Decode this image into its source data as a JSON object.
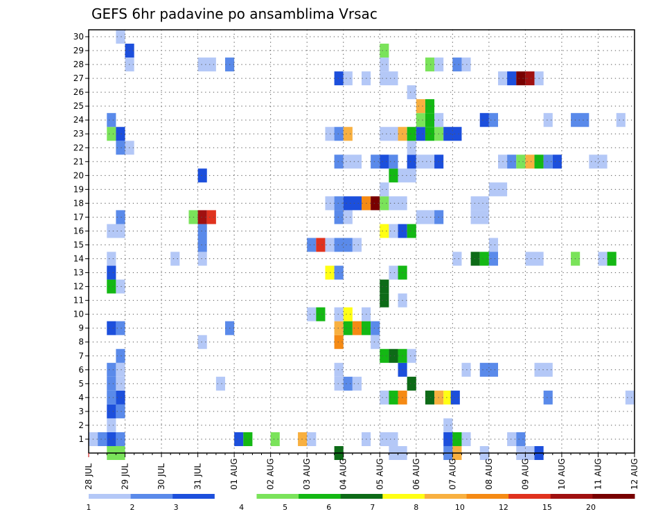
{
  "chart_data": {
    "type": "heatmap",
    "title": "GEFS 6hr padavine po ansamblima Vrsac",
    "x_ticks": [
      "28 JUL",
      "29 JUL",
      "30 JUL",
      "31 JUL",
      "01 AUG",
      "02 AUG",
      "03 AUG",
      "04 AUG",
      "05 AUG",
      "06 AUG",
      "07 AUG",
      "08 AUG",
      "09 AUG",
      "10 AUG",
      "11 AUG",
      "12 AUG"
    ],
    "x_step": "6hr",
    "y_members": [
      1,
      2,
      3,
      4,
      5,
      6,
      7,
      8,
      9,
      10,
      11,
      12,
      13,
      14,
      15,
      16,
      17,
      18,
      19,
      20,
      21,
      22,
      23,
      24,
      25,
      26,
      27,
      28,
      29,
      30
    ],
    "grid": "dotted",
    "colorbar": {
      "labels": [
        "1",
        "2",
        "3",
        "4",
        "5",
        "6",
        "7",
        "8",
        "10",
        "12",
        "15",
        "20"
      ],
      "colors": [
        "#b4c8f7",
        "#5a8aea",
        "#1c4fdc",
        "#ffffff",
        "#7ae35a",
        "#14b814",
        "#0d6b17",
        "#ffff14",
        "#f8b040",
        "#f58a14",
        "#e0321e",
        "#a01010",
        "#780000"
      ]
    },
    "cells": [
      [
        0,
        1,
        0,
        1,
        1
      ],
      [
        0.25,
        1,
        1,
        1,
        1
      ],
      [
        0.5,
        1,
        2,
        1,
        1
      ],
      [
        0.75,
        1,
        1,
        1,
        1
      ],
      [
        1,
        29,
        2,
        1,
        1
      ],
      [
        1,
        28,
        0,
        1,
        1
      ],
      [
        0.75,
        30,
        0,
        1,
        1
      ],
      [
        4,
        1,
        2,
        1,
        1
      ],
      [
        4.25,
        1,
        5,
        1,
        1
      ],
      [
        5,
        1,
        4,
        1,
        1
      ],
      [
        5.75,
        1,
        8,
        1,
        1
      ],
      [
        6,
        1,
        0,
        1,
        1
      ],
      [
        7.5,
        1,
        0,
        1,
        1
      ],
      [
        8,
        1,
        0,
        2,
        1
      ],
      [
        9.75,
        1,
        2,
        1,
        1
      ],
      [
        10,
        1,
        5,
        1,
        1
      ],
      [
        10.25,
        1,
        0,
        1,
        1
      ],
      [
        11.5,
        1,
        0,
        1,
        1
      ],
      [
        11.75,
        1,
        1,
        1,
        1
      ],
      [
        0.5,
        2,
        0,
        1,
        1
      ],
      [
        9.75,
        2,
        0,
        1,
        1
      ],
      [
        0.5,
        3,
        2,
        1,
        1
      ],
      [
        0.75,
        3,
        1,
        1,
        1
      ],
      [
        0.5,
        4,
        1,
        1,
        1
      ],
      [
        0.75,
        4,
        2,
        1,
        1
      ],
      [
        8,
        4,
        0,
        1,
        1
      ],
      [
        8.25,
        4,
        5,
        1,
        1
      ],
      [
        8.5,
        4,
        9,
        1,
        1
      ],
      [
        9.25,
        4,
        6,
        1,
        1
      ],
      [
        9.5,
        4,
        8,
        1,
        1
      ],
      [
        9.75,
        4,
        7,
        1,
        1
      ],
      [
        9.95,
        4,
        2,
        1,
        1
      ],
      [
        12.5,
        4,
        1,
        1,
        1
      ],
      [
        14.75,
        4,
        0,
        1,
        1
      ],
      [
        0.5,
        5,
        1,
        1,
        1
      ],
      [
        0.75,
        5,
        0,
        1,
        1
      ],
      [
        3.5,
        5,
        0,
        1,
        1
      ],
      [
        6.75,
        5,
        0,
        1,
        1
      ],
      [
        7,
        5,
        1,
        1,
        1
      ],
      [
        7.25,
        5,
        0,
        1,
        1
      ],
      [
        8.75,
        5,
        6,
        1,
        1
      ],
      [
        0.5,
        6,
        1,
        1,
        1
      ],
      [
        0.75,
        6,
        0,
        1,
        1
      ],
      [
        6.75,
        6,
        0,
        1,
        1
      ],
      [
        8.5,
        6,
        2,
        1,
        1
      ],
      [
        10.25,
        6,
        0,
        1,
        1
      ],
      [
        10.75,
        6,
        1,
        2,
        1
      ],
      [
        12.25,
        6,
        0,
        2,
        1
      ],
      [
        0.75,
        7,
        1,
        1,
        1
      ],
      [
        8,
        7,
        5,
        1,
        1
      ],
      [
        8.25,
        7,
        6,
        1,
        1
      ],
      [
        8.5,
        7,
        5,
        1,
        1
      ],
      [
        8.75,
        7,
        0,
        1,
        1
      ],
      [
        3,
        8,
        0,
        1,
        1
      ],
      [
        6.75,
        8,
        9,
        1,
        1
      ],
      [
        7.75,
        8,
        0,
        1,
        1
      ],
      [
        0.5,
        9,
        2,
        1,
        1
      ],
      [
        0.75,
        9,
        1,
        1,
        1
      ],
      [
        3.75,
        9,
        1,
        1,
        1
      ],
      [
        6.75,
        9,
        8,
        1,
        1
      ],
      [
        7,
        9,
        5,
        1,
        1
      ],
      [
        7.25,
        9,
        9,
        1,
        1
      ],
      [
        7.5,
        9,
        5,
        1,
        1
      ],
      [
        7.75,
        9,
        1,
        1,
        1
      ],
      [
        6,
        10,
        0,
        1,
        1
      ],
      [
        6.25,
        10,
        5,
        1,
        1
      ],
      [
        6.75,
        10,
        0,
        1,
        1
      ],
      [
        7,
        10,
        7,
        1,
        1
      ],
      [
        7.5,
        10,
        0,
        1,
        1
      ],
      [
        8,
        11,
        6,
        1,
        1
      ],
      [
        8.5,
        11,
        0,
        1,
        1
      ],
      [
        0.5,
        12,
        5,
        1,
        1
      ],
      [
        0.75,
        12,
        0,
        1,
        1
      ],
      [
        8,
        12,
        6,
        1,
        1
      ],
      [
        0.5,
        13,
        2,
        1,
        1
      ],
      [
        6.5,
        13,
        7,
        1,
        1
      ],
      [
        6.75,
        13,
        1,
        1,
        1
      ],
      [
        8.25,
        13,
        0,
        1,
        1
      ],
      [
        8.5,
        13,
        5,
        1,
        1
      ],
      [
        0.5,
        14,
        0,
        1,
        1
      ],
      [
        2.25,
        14,
        0,
        1,
        1
      ],
      [
        3,
        14,
        0,
        1,
        1
      ],
      [
        10,
        14,
        0,
        1,
        1
      ],
      [
        10.5,
        14,
        6,
        1,
        1
      ],
      [
        10.75,
        14,
        5,
        1,
        1
      ],
      [
        11,
        14,
        1,
        1,
        1
      ],
      [
        12,
        14,
        0,
        2,
        1
      ],
      [
        13.25,
        14,
        4,
        1,
        1
      ],
      [
        14,
        14,
        0,
        1,
        1
      ],
      [
        14.25,
        14,
        5,
        1,
        1
      ],
      [
        11,
        15,
        0,
        1,
        1
      ],
      [
        3,
        15,
        1,
        1,
        1
      ],
      [
        6,
        15,
        1,
        1,
        1
      ],
      [
        6.25,
        15,
        10,
        1,
        1
      ],
      [
        6.5,
        15,
        0,
        1,
        1
      ],
      [
        6.75,
        15,
        1,
        2,
        1
      ],
      [
        7.25,
        15,
        0,
        1,
        1
      ],
      [
        0.5,
        16,
        0,
        2,
        1
      ],
      [
        3,
        16,
        1,
        1,
        1
      ],
      [
        8,
        16,
        7,
        1,
        1
      ],
      [
        8.25,
        16,
        0,
        1,
        1
      ],
      [
        8.5,
        16,
        2,
        1,
        1
      ],
      [
        8.75,
        16,
        5,
        1,
        1
      ],
      [
        0.75,
        17,
        1,
        1,
        1
      ],
      [
        2.75,
        17,
        4,
        1,
        1
      ],
      [
        3,
        17,
        11,
        1,
        1
      ],
      [
        3.25,
        17,
        10,
        1,
        1
      ],
      [
        6.75,
        17,
        1,
        1,
        1
      ],
      [
        7,
        17,
        0,
        1,
        1
      ],
      [
        9,
        17,
        0,
        2,
        1
      ],
      [
        9.5,
        17,
        1,
        1,
        1
      ],
      [
        10.5,
        17,
        0,
        2,
        1
      ],
      [
        6.5,
        18,
        0,
        1,
        1
      ],
      [
        6.75,
        18,
        1,
        1,
        1
      ],
      [
        7,
        18,
        2,
        2,
        1
      ],
      [
        7.5,
        18,
        9,
        1,
        1
      ],
      [
        7.75,
        18,
        12,
        1,
        1
      ],
      [
        8,
        18,
        4,
        1,
        1
      ],
      [
        8.25,
        18,
        0,
        2,
        1
      ],
      [
        10.5,
        18,
        0,
        2,
        1
      ],
      [
        8,
        19,
        0,
        1,
        1
      ],
      [
        11,
        19,
        0,
        2,
        1
      ],
      [
        3,
        20,
        2,
        1,
        1
      ],
      [
        8.25,
        20,
        5,
        1,
        1
      ],
      [
        8.5,
        20,
        0,
        2,
        1
      ],
      [
        6.75,
        21,
        1,
        1,
        1
      ],
      [
        7,
        21,
        0,
        2,
        1
      ],
      [
        7.75,
        21,
        1,
        1,
        1
      ],
      [
        8,
        21,
        2,
        1,
        1
      ],
      [
        8.25,
        21,
        1,
        1,
        1
      ],
      [
        8.75,
        21,
        2,
        1,
        1
      ],
      [
        9,
        21,
        0,
        2,
        1
      ],
      [
        9.5,
        21,
        2,
        1,
        1
      ],
      [
        11.25,
        21,
        0,
        1,
        1
      ],
      [
        11.5,
        21,
        1,
        1,
        1
      ],
      [
        11.75,
        21,
        4,
        1,
        1
      ],
      [
        12,
        21,
        8,
        1,
        1
      ],
      [
        12.25,
        21,
        5,
        1,
        1
      ],
      [
        12.5,
        21,
        1,
        1,
        1
      ],
      [
        12.75,
        21,
        2,
        1,
        1
      ],
      [
        13.75,
        21,
        0,
        2,
        1
      ],
      [
        0.75,
        22,
        1,
        1,
        1
      ],
      [
        1,
        22,
        0,
        1,
        1
      ],
      [
        8.75,
        22,
        0,
        1,
        1
      ],
      [
        0.5,
        23,
        4,
        1,
        1
      ],
      [
        0.75,
        23,
        2,
        1,
        1
      ],
      [
        6.5,
        23,
        0,
        1,
        1
      ],
      [
        6.75,
        23,
        1,
        1,
        1
      ],
      [
        7,
        23,
        8,
        1,
        1
      ],
      [
        8,
        23,
        0,
        2,
        1
      ],
      [
        8.5,
        23,
        8,
        1,
        1
      ],
      [
        8.75,
        23,
        5,
        1,
        1
      ],
      [
        9,
        23,
        2,
        1,
        1
      ],
      [
        9.25,
        23,
        5,
        1,
        1
      ],
      [
        9.5,
        23,
        4,
        1,
        1
      ],
      [
        9.75,
        23,
        2,
        2,
        1
      ],
      [
        0.5,
        24,
        1,
        1,
        1
      ],
      [
        9,
        24,
        4,
        1,
        1
      ],
      [
        9.25,
        24,
        5,
        1,
        1
      ],
      [
        9.5,
        24,
        0,
        1,
        1
      ],
      [
        10.75,
        24,
        2,
        1,
        1
      ],
      [
        11,
        24,
        1,
        1,
        1
      ],
      [
        12.5,
        24,
        0,
        1,
        1
      ],
      [
        13.25,
        24,
        1,
        2,
        1
      ],
      [
        14.5,
        24,
        0,
        1,
        1
      ],
      [
        9,
        25,
        8,
        1,
        1
      ],
      [
        9.25,
        25,
        5,
        1,
        1
      ],
      [
        8.75,
        26,
        0,
        1,
        1
      ],
      [
        6.75,
        27,
        2,
        1,
        1
      ],
      [
        7,
        27,
        0,
        1,
        1
      ],
      [
        7.5,
        27,
        0,
        1,
        1
      ],
      [
        8,
        27,
        0,
        2,
        1
      ],
      [
        11.25,
        27,
        0,
        1,
        1
      ],
      [
        11.5,
        27,
        2,
        1,
        1
      ],
      [
        11.75,
        27,
        12,
        1,
        1
      ],
      [
        12,
        27,
        11,
        1,
        1
      ],
      [
        12.25,
        27,
        0,
        1,
        1
      ],
      [
        3,
        28,
        0,
        2,
        1
      ],
      [
        3.75,
        28,
        1,
        1,
        1
      ],
      [
        8,
        28,
        0,
        1,
        1
      ],
      [
        9.25,
        28,
        4,
        1,
        1
      ],
      [
        9.5,
        28,
        0,
        1,
        1
      ],
      [
        10,
        28,
        1,
        1,
        1
      ],
      [
        10.25,
        28,
        0,
        1,
        1
      ],
      [
        8,
        29,
        4,
        1,
        1
      ],
      [
        0.5,
        0,
        4,
        2,
        1
      ],
      [
        6.75,
        0,
        6,
        1,
        1
      ],
      [
        8.25,
        0,
        0,
        2,
        1
      ],
      [
        9.75,
        0,
        1,
        1,
        1
      ],
      [
        10,
        0,
        8,
        1,
        1
      ],
      [
        10.75,
        0,
        0,
        1,
        1
      ],
      [
        11.75,
        0,
        0,
        2,
        1
      ],
      [
        12.25,
        0,
        2,
        1,
        1
      ]
    ]
  }
}
